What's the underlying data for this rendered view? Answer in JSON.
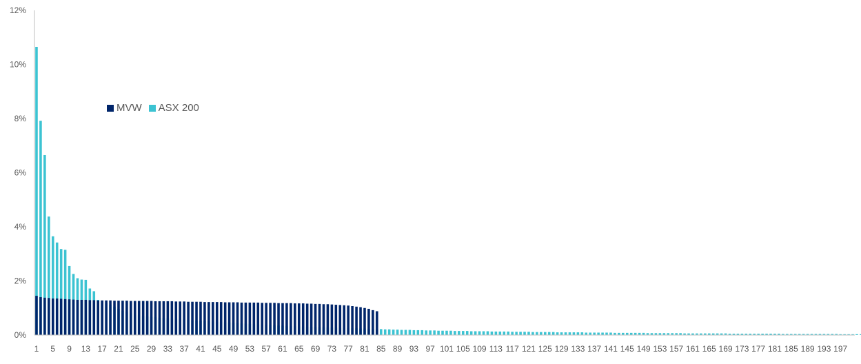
{
  "chart_data": {
    "type": "bar",
    "title": "",
    "xlabel": "",
    "ylabel": "",
    "ylim": [
      0,
      12
    ],
    "y_ticks": [
      0,
      2,
      4,
      6,
      8,
      10,
      12
    ],
    "y_tick_format": "%",
    "x_tick_start": 1,
    "x_tick_step": 4,
    "legend_position": "top-left",
    "grid": false,
    "categories_count": 200,
    "series": [
      {
        "name": "MVW",
        "color": "#00256a",
        "values": [
          1.45,
          1.4,
          1.38,
          1.37,
          1.35,
          1.35,
          1.34,
          1.33,
          1.32,
          1.31,
          1.3,
          1.3,
          1.3,
          1.29,
          1.29,
          1.28,
          1.28,
          1.28,
          1.28,
          1.27,
          1.27,
          1.27,
          1.27,
          1.26,
          1.26,
          1.26,
          1.26,
          1.26,
          1.26,
          1.25,
          1.25,
          1.25,
          1.25,
          1.25,
          1.24,
          1.24,
          1.24,
          1.23,
          1.23,
          1.23,
          1.23,
          1.22,
          1.22,
          1.22,
          1.22,
          1.22,
          1.21,
          1.21,
          1.21,
          1.21,
          1.2,
          1.2,
          1.2,
          1.2,
          1.2,
          1.19,
          1.19,
          1.19,
          1.19,
          1.18,
          1.18,
          1.18,
          1.18,
          1.17,
          1.17,
          1.17,
          1.16,
          1.16,
          1.15,
          1.15,
          1.14,
          1.14,
          1.13,
          1.12,
          1.11,
          1.1,
          1.09,
          1.07,
          1.05,
          1.03,
          1.0,
          0.97,
          0.92,
          0.88
        ]
      },
      {
        "name": "ASX 200",
        "color": "#3cc3d2",
        "values": [
          10.65,
          7.92,
          6.65,
          4.38,
          3.65,
          3.42,
          3.18,
          3.15,
          2.55,
          2.26,
          2.1,
          2.05,
          2.04,
          1.72,
          1.62,
          1.3,
          1.24,
          1.18,
          1.12,
          1.05,
          0.96,
          0.9,
          0.86,
          0.8,
          0.76,
          0.73,
          0.7,
          0.69,
          0.67,
          0.66,
          0.64,
          0.63,
          0.62,
          0.61,
          0.6,
          0.59,
          0.58,
          0.56,
          0.55,
          0.54,
          0.53,
          0.52,
          0.51,
          0.5,
          0.49,
          0.48,
          0.47,
          0.46,
          0.45,
          0.44,
          0.43,
          0.42,
          0.41,
          0.4,
          0.39,
          0.38,
          0.38,
          0.37,
          0.36,
          0.35,
          0.35,
          0.34,
          0.33,
          0.33,
          0.32,
          0.31,
          0.31,
          0.3,
          0.3,
          0.29,
          0.29,
          0.28,
          0.28,
          0.27,
          0.27,
          0.26,
          0.26,
          0.25,
          0.25,
          0.24,
          0.24,
          0.23,
          0.23,
          0.22,
          0.22,
          0.21,
          0.21,
          0.2,
          0.2,
          0.19,
          0.19,
          0.19,
          0.18,
          0.18,
          0.18,
          0.17,
          0.17,
          0.17,
          0.16,
          0.16,
          0.16,
          0.16,
          0.15,
          0.15,
          0.15,
          0.15,
          0.14,
          0.14,
          0.14,
          0.14,
          0.14,
          0.13,
          0.13,
          0.13,
          0.13,
          0.13,
          0.12,
          0.12,
          0.12,
          0.12,
          0.12,
          0.11,
          0.11,
          0.11,
          0.11,
          0.11,
          0.11,
          0.1,
          0.1,
          0.1,
          0.1,
          0.1,
          0.1,
          0.1,
          0.09,
          0.09,
          0.09,
          0.09,
          0.09,
          0.09,
          0.09,
          0.08,
          0.08,
          0.08,
          0.08,
          0.08,
          0.08,
          0.08,
          0.08,
          0.07,
          0.07,
          0.07,
          0.07,
          0.07,
          0.07,
          0.07,
          0.07,
          0.07,
          0.06,
          0.06,
          0.06,
          0.06,
          0.06,
          0.06,
          0.06,
          0.06,
          0.06,
          0.06,
          0.06,
          0.05,
          0.05,
          0.05,
          0.05,
          0.05,
          0.05,
          0.05,
          0.05,
          0.05,
          0.05,
          0.05,
          0.05,
          0.05,
          0.04,
          0.04,
          0.04,
          0.04,
          0.04,
          0.04,
          0.04,
          0.04,
          0.04,
          0.04,
          0.04,
          0.04,
          0.04,
          0.04,
          0.03,
          0.03,
          0.03,
          0.03,
          0.03,
          0.03,
          0.03,
          0.03
        ]
      }
    ]
  }
}
